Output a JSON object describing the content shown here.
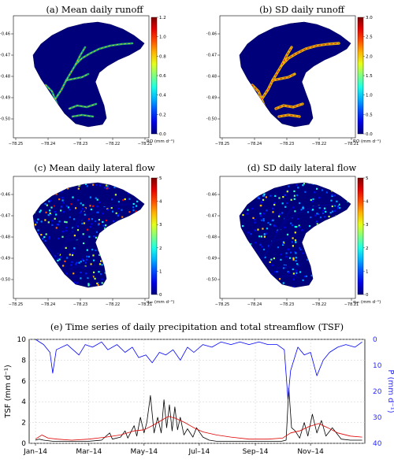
{
  "chart_data": [
    {
      "type": "heatmap",
      "title": "(a) Mean daily runoff",
      "colorbar_label": "RO (mm d⁻¹)",
      "colorbar_ticks": [
        "0.0",
        "0.2",
        "0.4",
        "0.6",
        "0.8",
        "1.0",
        "1.2"
      ],
      "x_ticks": [
        "−78.25",
        "−78.24",
        "−78.23",
        "−78.22",
        "−78.21"
      ],
      "y_ticks": [
        "−0.46",
        "−0.47",
        "−0.48",
        "−0.49",
        "−0.50"
      ]
    },
    {
      "type": "heatmap",
      "title": "(b) SD daily runoff",
      "colorbar_label": "RO (mm d⁻¹)",
      "colorbar_ticks": [
        "0.0",
        "0.5",
        "1.0",
        "1.5",
        "2.0",
        "2.5",
        "3.0"
      ],
      "x_ticks": [
        "−78.25",
        "−78.24",
        "−78.23",
        "−78.22",
        "−78.21"
      ],
      "y_ticks": [
        "−0.46",
        "−0.47",
        "−0.48",
        "−0.49",
        "−0.50"
      ]
    },
    {
      "type": "heatmap",
      "title": "(c) Mean daily lateral flow",
      "colorbar_label": "qₗₐₜ (mm d⁻¹)",
      "colorbar_ticks": [
        "0",
        "1",
        "2",
        "3",
        "4",
        "5"
      ],
      "x_ticks": [
        "−78.25",
        "−78.24",
        "−78.23",
        "−78.22",
        "−78.21"
      ],
      "y_ticks": [
        "−0.46",
        "−0.47",
        "−0.48",
        "−0.49",
        "−0.50"
      ]
    },
    {
      "type": "heatmap",
      "title": "(d) SD daily lateral flow",
      "colorbar_label": "qₗₐₜ (mm d⁻¹)",
      "colorbar_ticks": [
        "0",
        "1",
        "2",
        "3",
        "4",
        "5"
      ],
      "x_ticks": [
        "−78.25",
        "−78.24",
        "−78.23",
        "−78.22",
        "−78.21"
      ],
      "y_ticks": [
        "−0.46",
        "−0.47",
        "−0.48",
        "−0.49",
        "−0.50"
      ]
    },
    {
      "type": "line",
      "title": "(e) Time series of daily precipitation and total streamflow (TSF)",
      "ylabel_left": "TSF (mm d⁻¹)",
      "ylabel_right": "P (mm d⁻¹)",
      "ylim_left": [
        0,
        10
      ],
      "ylim_right_inverted": [
        0,
        40
      ],
      "left_ticks": [
        "0",
        "2",
        "4",
        "6",
        "8",
        "10"
      ],
      "right_ticks": [
        "0",
        "10",
        "20",
        "30",
        "40"
      ],
      "x_ticks": [
        "Jan–14",
        "Mar–14",
        "May–14",
        "Jul–14",
        "Sep–14",
        "Nov–14"
      ],
      "x_tick_dates": [
        "2014-01-01",
        "2014-03-01",
        "2014-05-01",
        "2014-07-01",
        "2014-09-01",
        "2014-11-01"
      ],
      "xlim": [
        "2013-12-25",
        "2014-12-31"
      ],
      "grid": true,
      "series": [
        {
          "name": "",
          "axis": "left",
          "color": "#000000",
          "x": [
            "2014-01-01",
            "2014-01-05",
            "2014-01-10",
            "2014-01-20",
            "2014-02-01",
            "2014-02-15",
            "2014-03-01",
            "2014-03-15",
            "2014-03-24",
            "2014-03-27",
            "2014-04-05",
            "2014-04-10",
            "2014-04-13",
            "2014-04-20",
            "2014-04-23",
            "2014-04-27",
            "2014-05-01",
            "2014-05-04",
            "2014-05-08",
            "2014-05-12",
            "2014-05-16",
            "2014-05-20",
            "2014-05-23",
            "2014-05-26",
            "2014-05-29",
            "2014-06-01",
            "2014-06-04",
            "2014-06-07",
            "2014-06-10",
            "2014-06-14",
            "2014-06-18",
            "2014-06-24",
            "2014-06-28",
            "2014-07-05",
            "2014-07-12",
            "2014-07-20",
            "2014-08-01",
            "2014-08-15",
            "2014-09-01",
            "2014-09-15",
            "2014-09-30",
            "2014-10-05",
            "2014-10-08",
            "2014-10-11",
            "2014-10-15",
            "2014-10-20",
            "2014-10-25",
            "2014-10-29",
            "2014-11-03",
            "2014-11-08",
            "2014-11-13",
            "2014-11-18",
            "2014-11-25",
            "2014-12-05",
            "2014-12-15",
            "2014-12-28"
          ],
          "y": [
            0.3,
            0.4,
            0.3,
            0.2,
            0.2,
            0.2,
            0.2,
            0.3,
            1.0,
            0.4,
            0.6,
            1.2,
            0.5,
            1.7,
            0.7,
            2.5,
            1.0,
            2.0,
            4.6,
            1.0,
            2.5,
            1.0,
            4.2,
            1.5,
            3.7,
            1.2,
            3.5,
            1.3,
            2.5,
            0.8,
            1.4,
            0.6,
            1.5,
            0.6,
            0.3,
            0.2,
            0.2,
            0.2,
            0.2,
            0.2,
            0.2,
            0.3,
            5.3,
            1.5,
            1.2,
            0.5,
            2.0,
            0.7,
            2.8,
            1.0,
            2.2,
            0.7,
            1.5,
            0.4,
            0.3,
            0.3
          ]
        },
        {
          "name": "",
          "axis": "left",
          "color": "#e00000",
          "x": [
            "2014-01-01",
            "2014-01-08",
            "2014-01-15",
            "2014-01-25",
            "2014-02-10",
            "2014-03-01",
            "2014-03-20",
            "2014-04-05",
            "2014-04-20",
            "2014-05-01",
            "2014-05-10",
            "2014-05-20",
            "2014-05-28",
            "2014-06-05",
            "2014-06-15",
            "2014-06-25",
            "2014-07-05",
            "2014-07-20",
            "2014-08-05",
            "2014-08-25",
            "2014-09-15",
            "2014-10-01",
            "2014-10-10",
            "2014-10-20",
            "2014-10-30",
            "2014-11-10",
            "2014-11-20",
            "2014-12-01",
            "2014-12-15",
            "2014-12-28"
          ],
          "y": [
            0.4,
            0.8,
            0.5,
            0.4,
            0.3,
            0.4,
            0.6,
            0.8,
            1.2,
            1.3,
            1.7,
            2.2,
            2.6,
            2.4,
            2.0,
            1.5,
            1.1,
            0.8,
            0.6,
            0.4,
            0.4,
            0.5,
            1.0,
            1.2,
            1.6,
            1.9,
            1.5,
            1.0,
            0.7,
            0.6
          ]
        },
        {
          "name": "",
          "axis": "right",
          "color": "#0000ff",
          "x": [
            "2014-01-01",
            "2014-01-10",
            "2014-01-17",
            "2014-01-20",
            "2014-01-24",
            "2014-02-05",
            "2014-02-18",
            "2014-02-25",
            "2014-03-05",
            "2014-03-15",
            "2014-03-22",
            "2014-04-01",
            "2014-04-10",
            "2014-04-18",
            "2014-04-25",
            "2014-05-03",
            "2014-05-10",
            "2014-05-18",
            "2014-05-25",
            "2014-06-02",
            "2014-06-10",
            "2014-06-18",
            "2014-06-25",
            "2014-07-05",
            "2014-07-15",
            "2014-07-25",
            "2014-08-05",
            "2014-08-15",
            "2014-08-25",
            "2014-09-05",
            "2014-09-15",
            "2014-09-25",
            "2014-10-03",
            "2014-10-07",
            "2014-10-10",
            "2014-10-18",
            "2014-10-25",
            "2014-11-01",
            "2014-11-08",
            "2014-11-15",
            "2014-11-22",
            "2014-12-01",
            "2014-12-10",
            "2014-12-20",
            "2014-12-28"
          ],
          "y": [
            0,
            2,
            5,
            13,
            4,
            2,
            6,
            2,
            3,
            1,
            4,
            2,
            5,
            3,
            7,
            6,
            9,
            5,
            6,
            4,
            8,
            3,
            5,
            2,
            3,
            1,
            2,
            1,
            2,
            1,
            2,
            2,
            4,
            23,
            12,
            3,
            6,
            5,
            14,
            8,
            5,
            3,
            2,
            3,
            1
          ]
        }
      ]
    }
  ]
}
